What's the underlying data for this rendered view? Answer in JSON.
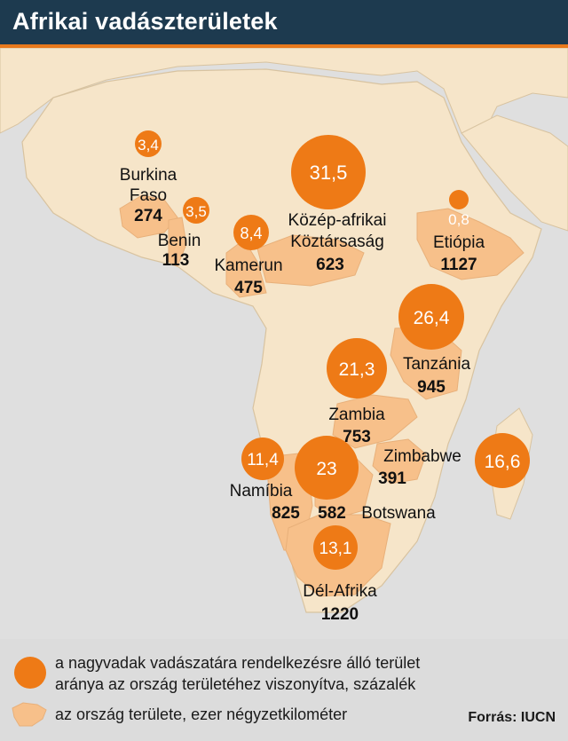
{
  "title": "Afrikai vadászterületek",
  "colors": {
    "header_bg": "#1d3a4f",
    "accent": "#ee7a16",
    "country_fill": "#f7c08a",
    "land": "#f6e5c9",
    "sea": "#dfdfdf"
  },
  "countries": [
    {
      "id": "burkina",
      "name_lines": [
        "Burkina",
        "Faso"
      ],
      "area": "274",
      "pct": "3,4"
    },
    {
      "id": "benin",
      "name_lines": [
        "Benin"
      ],
      "area": "113",
      "pct": "3,5"
    },
    {
      "id": "kamerun",
      "name_lines": [
        "Kamerun"
      ],
      "area": "475",
      "pct": "8,4"
    },
    {
      "id": "kozep-afrikai",
      "name_lines": [
        "Közép-afrikai",
        "Köztársaság"
      ],
      "area": "623",
      "pct": "31,5"
    },
    {
      "id": "etiopia",
      "name_lines": [
        "Etiópia"
      ],
      "area": "1127",
      "pct": "0,8"
    },
    {
      "id": "tanzania",
      "name_lines": [
        "Tanzánia"
      ],
      "area": "945",
      "pct": "26,4"
    },
    {
      "id": "zambia",
      "name_lines": [
        "Zambia"
      ],
      "area": "753",
      "pct": "21,3"
    },
    {
      "id": "zimbabwe",
      "name_lines": [
        "Zimbabwe"
      ],
      "area": "391",
      "pct": "16,6"
    },
    {
      "id": "namibia",
      "name_lines": [
        "Namíbia"
      ],
      "area": "825",
      "pct": "11,4"
    },
    {
      "id": "botswana",
      "name_lines": [
        "Botswana"
      ],
      "area": "582",
      "pct": "23"
    },
    {
      "id": "del-afrika",
      "name_lines": [
        "Dél-Afrika"
      ],
      "area": "1220",
      "pct": "13,1"
    }
  ],
  "legend": {
    "bubble_line1": "a nagyvadak vadászatára rendelkezésre álló terület",
    "bubble_line2": "aránya az ország területéhez viszonyítva, százalék",
    "area_text": "az ország területe, ezer négyzetkilométer"
  },
  "source": "Forrás: IUCN"
}
